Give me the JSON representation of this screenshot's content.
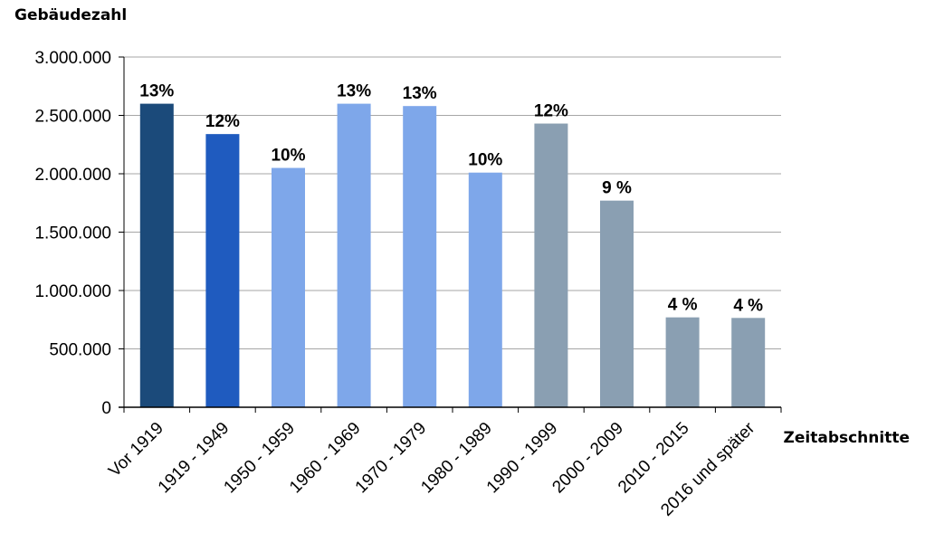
{
  "chart_data": {
    "type": "bar",
    "ylabel": "Gebäudezahl",
    "xlabel": "Zeitabschnitte",
    "ylim": [
      0,
      3000000
    ],
    "y_ticks": [
      "0",
      "500.000",
      "1.000.000",
      "1.500.000",
      "2.000.000",
      "2.500.000",
      "3.000.000"
    ],
    "categories": [
      "Vor 1919",
      "1919 - 1949",
      "1950 - 1959",
      "1960 - 1969",
      "1970 - 1979",
      "1980 - 1989",
      "1990 - 1999",
      "2000 - 2009",
      "2010 - 2015",
      "2016 und später"
    ],
    "values": [
      2600000,
      2340000,
      2050000,
      2600000,
      2580000,
      2010000,
      2430000,
      1770000,
      770000,
      765000
    ],
    "data_labels": [
      "13%",
      "12%",
      "10%",
      "13%",
      "13%",
      "10%",
      "12%",
      "9 %",
      "4 %",
      "4 %"
    ],
    "colors": [
      "#1b4a7a",
      "#1f5bbf",
      "#7ea7ea",
      "#7ea7ea",
      "#7ea7ea",
      "#7ea7ea",
      "#8a9fb2",
      "#8a9fb2",
      "#8a9fb2",
      "#8a9fb2"
    ],
    "grid": true,
    "legend": "none"
  }
}
